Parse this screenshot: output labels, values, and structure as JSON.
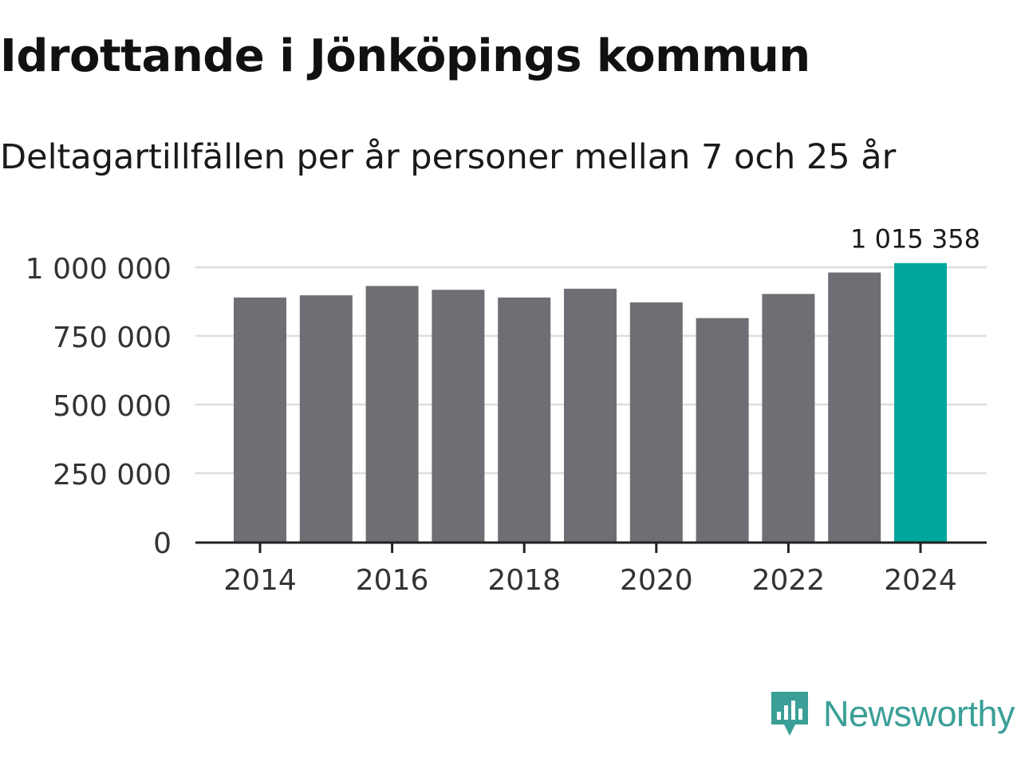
{
  "header": {
    "title": "Idrottande i Jönköpings kommun",
    "subtitle": "Deltagartillfällen per år personer mellan 7 och 25 år"
  },
  "brand": {
    "name": "Newsworthy",
    "icon": "newsworthy-logo-icon",
    "color": "#3a9f97"
  },
  "colors": {
    "bar": "#6f6e74",
    "highlight": "#00a59b",
    "grid": "#dddddd",
    "axis": "#222222"
  },
  "chart_data": {
    "type": "bar",
    "title": "Idrottande i Jönköpings kommun",
    "subtitle": "Deltagartillfällen per år personer mellan 7 och 25 år",
    "categories": [
      "2014",
      "2015",
      "2016",
      "2017",
      "2018",
      "2019",
      "2020",
      "2021",
      "2022",
      "2023",
      "2024"
    ],
    "values": [
      890000,
      898000,
      932000,
      918000,
      890000,
      922000,
      872000,
      815000,
      903000,
      981000,
      1015358
    ],
    "highlight_index": 10,
    "highlight_label": "1 015 358",
    "xticks": [
      "2014",
      "2016",
      "2018",
      "2020",
      "2022",
      "2024"
    ],
    "yticks": [
      0,
      250000,
      500000,
      750000,
      1000000
    ],
    "ytick_labels": [
      "0",
      "250 000",
      "500 000",
      "750 000",
      "1 000 000"
    ],
    "ylim": [
      0,
      1000000
    ],
    "xlabel": "",
    "ylabel": "",
    "grid": true
  }
}
